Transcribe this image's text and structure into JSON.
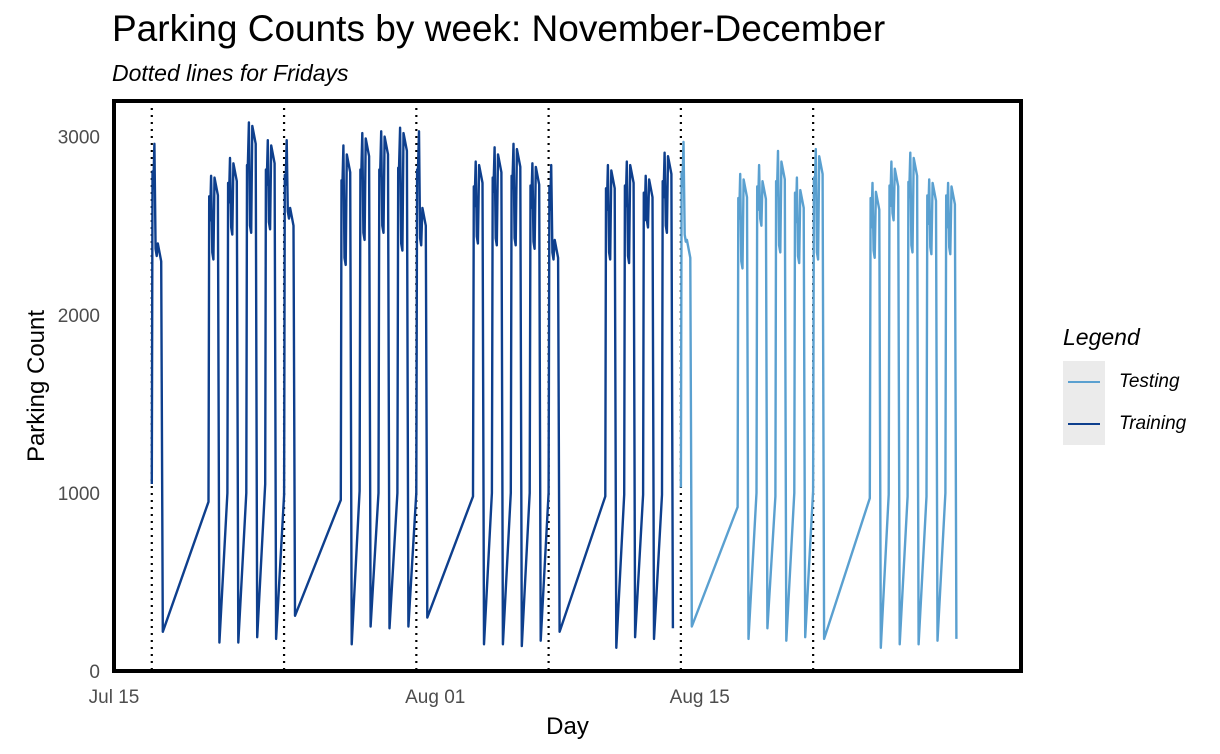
{
  "chart_data": {
    "type": "line",
    "title": "Parking Counts by week: November-December",
    "subtitle": "Dotted lines for Fridays",
    "xlabel": "Day",
    "ylabel": "Parking Count",
    "x_range": [
      "2023-07-15",
      "2023-09-01"
    ],
    "ylim": [
      0,
      3200
    ],
    "x_ticks": [
      {
        "date": "2023-07-15",
        "label": "Jul 15"
      },
      {
        "date": "2023-08-01",
        "label": "Aug 01"
      },
      {
        "date": "2023-08-15",
        "label": "Aug 15"
      }
    ],
    "y_ticks": [
      0,
      1000,
      2000,
      3000
    ],
    "grid": false,
    "legend": {
      "title": "Legend",
      "position": "right"
    },
    "friday_lines": [
      "2023-07-17",
      "2023-07-24",
      "2023-07-31",
      "2023-08-07",
      "2023-08-14",
      "2023-08-21"
    ],
    "daily_pattern": {
      "note_free": true,
      "opening_value": 1000,
      "peak_fraction": 0.14,
      "close_fraction": 0.92,
      "low_fraction": 0.22
    },
    "series": [
      {
        "name": "Testing",
        "color": "#5aa0d0",
        "days": [
          {
            "date": "2023-08-14",
            "start": 1030,
            "peak": 2970,
            "dip": 2450,
            "close": 2420,
            "low": 250
          },
          {
            "date": "2023-08-17",
            "start": 920,
            "peak": 2790,
            "dip": 2300,
            "close": 2760,
            "low": 180
          },
          {
            "date": "2023-08-18",
            "start": 1000,
            "peak": 2840,
            "dip": 2540,
            "close": 2750,
            "low": 240
          },
          {
            "date": "2023-08-19",
            "start": 980,
            "peak": 2920,
            "dip": 2390,
            "close": 2860,
            "low": 170
          },
          {
            "date": "2023-08-20",
            "start": 1000,
            "peak": 2770,
            "dip": 2330,
            "close": 2700,
            "low": 190
          },
          {
            "date": "2023-08-21",
            "start": 1010,
            "peak": 2930,
            "dip": 2350,
            "close": 2890,
            "low": 180
          },
          {
            "date": "2023-08-24",
            "start": 970,
            "peak": 2740,
            "dip": 2360,
            "close": 2690,
            "low": 130
          },
          {
            "date": "2023-08-25",
            "start": 990,
            "peak": 2860,
            "dip": 2570,
            "close": 2820,
            "low": 150
          },
          {
            "date": "2023-08-26",
            "start": 980,
            "peak": 2910,
            "dip": 2390,
            "close": 2880,
            "low": 150
          },
          {
            "date": "2023-08-27",
            "start": 980,
            "peak": 2760,
            "dip": 2380,
            "close": 2740,
            "low": 170
          },
          {
            "date": "2023-08-28",
            "start": 1000,
            "peak": 2740,
            "dip": 2380,
            "close": 2720,
            "low": 180
          }
        ]
      },
      {
        "name": "Training",
        "color": "#0e3f8d",
        "days": [
          {
            "date": "2023-07-17",
            "start": 1050,
            "peak": 2960,
            "dip": 2370,
            "close": 2400,
            "low": 220
          },
          {
            "date": "2023-07-20",
            "start": 950,
            "peak": 2780,
            "dip": 2350,
            "close": 2770,
            "low": 160
          },
          {
            "date": "2023-07-21",
            "start": 1000,
            "peak": 2880,
            "dip": 2490,
            "close": 2850,
            "low": 160
          },
          {
            "date": "2023-07-22",
            "start": 1000,
            "peak": 3080,
            "dip": 2500,
            "close": 3060,
            "low": 190
          },
          {
            "date": "2023-07-23",
            "start": 1050,
            "peak": 2980,
            "dip": 2520,
            "close": 2950,
            "low": 180
          },
          {
            "date": "2023-07-24",
            "start": 990,
            "peak": 2980,
            "dip": 2580,
            "close": 2600,
            "low": 310
          },
          {
            "date": "2023-07-27",
            "start": 960,
            "peak": 2950,
            "dip": 2320,
            "close": 2900,
            "low": 150
          },
          {
            "date": "2023-07-28",
            "start": 1010,
            "peak": 3020,
            "dip": 2460,
            "close": 2990,
            "low": 250
          },
          {
            "date": "2023-07-29",
            "start": 1000,
            "peak": 3030,
            "dip": 2500,
            "close": 3000,
            "low": 240
          },
          {
            "date": "2023-07-30",
            "start": 1000,
            "peak": 3050,
            "dip": 2400,
            "close": 3020,
            "low": 250
          },
          {
            "date": "2023-07-31",
            "start": 1000,
            "peak": 3030,
            "dip": 2430,
            "close": 2600,
            "low": 300
          },
          {
            "date": "2023-08-03",
            "start": 980,
            "peak": 2860,
            "dip": 2440,
            "close": 2840,
            "low": 150
          },
          {
            "date": "2023-08-04",
            "start": 1000,
            "peak": 2940,
            "dip": 2430,
            "close": 2900,
            "low": 150
          },
          {
            "date": "2023-08-05",
            "start": 1000,
            "peak": 2960,
            "dip": 2430,
            "close": 2930,
            "low": 140
          },
          {
            "date": "2023-08-06",
            "start": 1000,
            "peak": 2850,
            "dip": 2410,
            "close": 2830,
            "low": 170
          },
          {
            "date": "2023-08-07",
            "start": 1000,
            "peak": 2840,
            "dip": 2350,
            "close": 2420,
            "low": 220
          },
          {
            "date": "2023-08-10",
            "start": 980,
            "peak": 2840,
            "dip": 2350,
            "close": 2810,
            "low": 130
          },
          {
            "date": "2023-08-11",
            "start": 990,
            "peak": 2860,
            "dip": 2330,
            "close": 2840,
            "low": 190
          },
          {
            "date": "2023-08-12",
            "start": 990,
            "peak": 2780,
            "dip": 2530,
            "close": 2760,
            "low": 180
          },
          {
            "date": "2023-08-13",
            "start": 990,
            "peak": 2910,
            "dip": 2500,
            "close": 2890,
            "low": 240
          }
        ]
      }
    ]
  }
}
